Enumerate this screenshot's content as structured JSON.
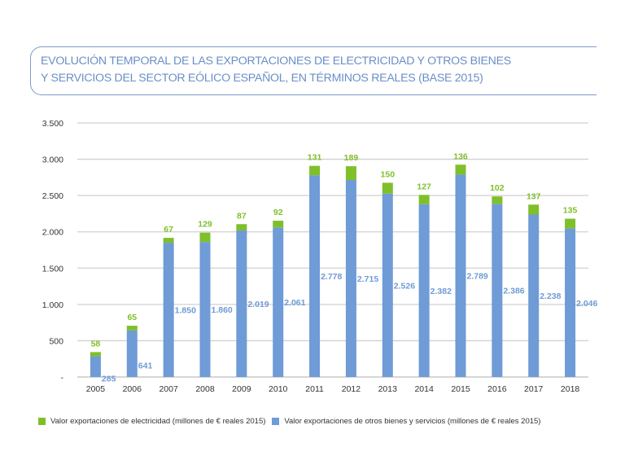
{
  "title": {
    "line1": "EVOLUCIÓN TEMPORAL DE LAS EXPORTACIONES DE ELECTRICIDAD Y OTROS BIENES",
    "line2": "Y SERVICIOS DEL SECTOR EÓLICO ESPAÑOL, EN TÉRMINOS REALES (BASE 2015)"
  },
  "colors": {
    "electricity": "#7fbf2a",
    "other": "#6f9bd6",
    "title": "#6a8fc6",
    "grid": "#d0d0d0",
    "axis_text": "#333333"
  },
  "legend": [
    {
      "label": "Valor exportaciones  de electricidad (millones de  € reales 2015)",
      "series": "electricity"
    },
    {
      "label": "Valor exportaciones  de otros  bienes y servicios (millones de € reales 2015)",
      "series": "other"
    }
  ],
  "chart_data": {
    "type": "bar",
    "stacked": true,
    "title": "EVOLUCIÓN TEMPORAL DE LAS EXPORTACIONES DE ELECTRICIDAD Y OTROS BIENES Y SERVICIOS DEL SECTOR EÓLICO ESPAÑOL, EN TÉRMINOS REALES (BASE 2015)",
    "xlabel": "",
    "ylabel": "",
    "categories": [
      "2005",
      "2006",
      "2007",
      "2008",
      "2009",
      "2010",
      "2011",
      "2012",
      "2013",
      "2014",
      "2015",
      "2016",
      "2017",
      "2018"
    ],
    "series": [
      {
        "name": "Valor exportaciones de otros bienes y servicios (millones de € reales 2015)",
        "key": "other",
        "values": [
          285,
          641,
          1850,
          1860,
          2019,
          2061,
          2778,
          2715,
          2526,
          2382,
          2789,
          2386,
          2238,
          2046
        ],
        "labels": [
          "285",
          "641",
          "1.850",
          "1.860",
          "2.019",
          "2.061",
          "2.778",
          "2.715",
          "2.526",
          "2.382",
          "2.789",
          "2.386",
          "2.238",
          "2.046"
        ]
      },
      {
        "name": "Valor exportaciones de electricidad (millones de € reales 2015)",
        "key": "electricity",
        "values": [
          58,
          65,
          67,
          129,
          87,
          92,
          131,
          189,
          150,
          127,
          136,
          102,
          137,
          135
        ],
        "labels": [
          "58",
          "65",
          "67",
          "129",
          "87",
          "92",
          "131",
          "189",
          "150",
          "127",
          "136",
          "102",
          "137",
          "135"
        ]
      }
    ],
    "ylim": [
      0,
      3500
    ],
    "yticks": [
      0,
      500,
      1000,
      1500,
      2000,
      2500,
      3000,
      3500
    ],
    "ytick_labels": [
      "-",
      "500",
      "1.000",
      "1.500",
      "2.000",
      "2.500",
      "3.000",
      "3.500"
    ],
    "grid": true,
    "legend_position": "bottom"
  }
}
